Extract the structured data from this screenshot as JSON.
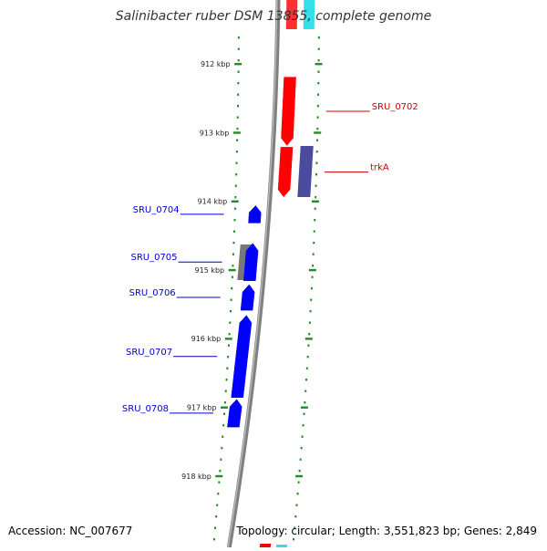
{
  "title": "Salinibacter ruber DSM 13855, complete genome",
  "accession": "Accession: NC_007677",
  "topology": "Topology: circular; Length: 3,551,823 bp; Genes: 2,849",
  "ruler": {
    "unit": "kbp",
    "ticks": [
      {
        "kbp": 912,
        "label": "912 kbp"
      },
      {
        "kbp": 913,
        "label": "913 kbp"
      },
      {
        "kbp": 914,
        "label": "914 kbp"
      },
      {
        "kbp": 915,
        "label": "915 kbp"
      },
      {
        "kbp": 916,
        "label": "916 kbp"
      },
      {
        "kbp": 917,
        "label": "917 kbp"
      },
      {
        "kbp": 918,
        "label": "918 kbp"
      }
    ]
  },
  "genes": [
    {
      "name": "SRU_0702",
      "strand": "-",
      "start_kbp": 912.18,
      "end_kbp": 913.2,
      "color": "#ff0000",
      "label_color": "#cc0000"
    },
    {
      "name": "trkA",
      "strand": "-",
      "start_kbp": 913.2,
      "end_kbp": 913.95,
      "color": "#ff0000",
      "label_color": "#cc0000"
    },
    {
      "name": "SRU_0704",
      "strand": "+",
      "start_kbp": 914.05,
      "end_kbp": 914.33,
      "color": "#0000ff",
      "label_color": "#0000cc"
    },
    {
      "name": "SRU_0705",
      "strand": "+",
      "start_kbp": 914.6,
      "end_kbp": 915.17,
      "color": "#0000ff",
      "label_color": "#0000cc"
    },
    {
      "name": "SRU_0706",
      "strand": "+",
      "start_kbp": 915.2,
      "end_kbp": 915.6,
      "color": "#0000ff",
      "label_color": "#0000cc"
    },
    {
      "name": "SRU_0707",
      "strand": "+",
      "start_kbp": 915.65,
      "end_kbp": 916.87,
      "color": "#0000ff",
      "label_color": "#0000cc"
    },
    {
      "name": "SRU_0708",
      "strand": "+",
      "start_kbp": 916.87,
      "end_kbp": 917.3,
      "color": "#0000ff",
      "label_color": "#0000cc"
    }
  ],
  "colors": {
    "backbone": "#808080",
    "ruler_tick": "#228b22",
    "cds_plus": "#0000ff",
    "cds_minus": "#ff0000",
    "feature_grey": "#777777",
    "feature_navy": "#4b4b9b",
    "feature_cyan": "#33e0e8"
  }
}
